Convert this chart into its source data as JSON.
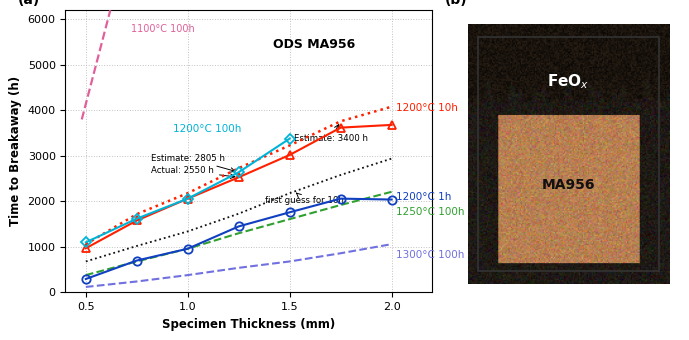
{
  "title_label": "ODS MA956",
  "xlabel": "Specimen Thickness (mm)",
  "ylabel": "Time to Breakaway (h)",
  "panel_a": "(a)",
  "panel_b": "(b)",
  "xlim": [
    0.4,
    2.2
  ],
  "ylim": [
    0,
    6200
  ],
  "yticks": [
    0,
    1000,
    2000,
    3000,
    4000,
    5000,
    6000
  ],
  "xticks": [
    0.5,
    1.0,
    1.5,
    2.0
  ],
  "line_1100_100h": {
    "label": "1100°C 100h",
    "color": "#e0609a",
    "x": [
      0.48,
      0.62
    ],
    "y": [
      3800,
      6200
    ]
  },
  "line_1200_10h_solid": {
    "color": "#ff2000",
    "x": [
      0.5,
      0.75,
      1.0,
      1.25,
      1.5,
      1.75,
      2.0
    ],
    "y": [
      970,
      1580,
      2060,
      2530,
      3020,
      3620,
      3680
    ]
  },
  "line_1200_10h_dotted": {
    "color": "#ff2000",
    "x": [
      0.5,
      0.75,
      1.0,
      1.25,
      1.5,
      1.75,
      2.0
    ],
    "y": [
      1060,
      1720,
      2180,
      2730,
      3230,
      3760,
      4080
    ]
  },
  "line_1200_100h": {
    "color": "#00b4d8",
    "x": [
      0.5,
      0.75,
      1.0,
      1.25,
      1.5
    ],
    "y": [
      1100,
      1620,
      2060,
      2640,
      3380
    ]
  },
  "line_1200_1h": {
    "color": "#1040c0",
    "x": [
      0.5,
      0.75,
      1.0,
      1.25,
      1.5,
      1.75,
      2.0
    ],
    "y": [
      295,
      700,
      960,
      1450,
      1760,
      2060,
      2040
    ]
  },
  "line_1250_100h": {
    "color": "#30a030",
    "x": [
      0.5,
      0.75,
      1.0,
      1.25,
      1.5,
      1.75,
      2.0
    ],
    "y": [
      380,
      680,
      960,
      1300,
      1610,
      1920,
      2210
    ]
  },
  "line_1300_100h": {
    "color": "#7070e0",
    "x": [
      0.5,
      0.75,
      1.0,
      1.25,
      1.5,
      1.75,
      2.0
    ],
    "y": [
      120,
      240,
      380,
      540,
      680,
      860,
      1060
    ]
  },
  "line_firstguess": {
    "color": "#111111",
    "x": [
      0.5,
      0.75,
      1.0,
      1.25,
      1.5,
      1.75,
      2.0
    ],
    "y": [
      680,
      1020,
      1340,
      1730,
      2180,
      2580,
      2940
    ]
  },
  "bg_color": "#ffffff",
  "grid_color": "#bbbbbb"
}
